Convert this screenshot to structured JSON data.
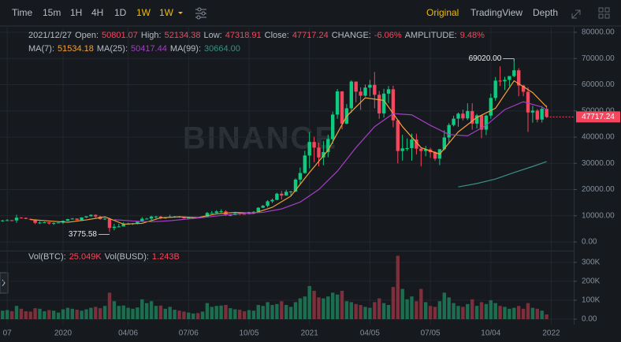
{
  "toolbar": {
    "intervals": [
      "Time",
      "15m",
      "1H",
      "4H",
      "1D",
      "1W"
    ],
    "dropdown": "1W",
    "views": [
      "Original",
      "TradingView",
      "Depth"
    ]
  },
  "chart_data": {
    "type": "candlestick",
    "watermark": "BINANCE",
    "header": {
      "date": "2021/12/27",
      "labels": [
        "Open:",
        "High:",
        "Low:",
        "Close:",
        "CHANGE:",
        "AMPLITUDE:"
      ],
      "change": "-6.06%",
      "amplitude": "9.48%"
    },
    "volume_header": {
      "labels": [
        "Vol(BTC):",
        "Vol(BUSD):"
      ],
      "btc": "25.049K",
      "busd": "1.243B"
    },
    "up_color": "#0ecb81",
    "down_color": "#f6465d",
    "volume_up_color": "#1d6e50",
    "volume_down_color": "#7d2f3b",
    "max_label": "69020.00",
    "candles": [
      [
        8050,
        8400,
        7700,
        8200
      ],
      [
        8200,
        8700,
        8050,
        8300
      ],
      [
        8300,
        8400,
        7900,
        8200
      ],
      [
        8200,
        10400,
        7300,
        9250
      ],
      [
        9250,
        9500,
        9050,
        9200
      ],
      [
        9200,
        9300,
        8700,
        8800
      ],
      [
        8800,
        8900,
        8350,
        8500
      ],
      [
        8500,
        8600,
        6800,
        7300
      ],
      [
        7300,
        7850,
        6850,
        7400
      ],
      [
        7400,
        7750,
        7250,
        7500
      ],
      [
        7500,
        7550,
        6650,
        7050
      ],
      [
        7050,
        7450,
        6450,
        7250
      ],
      [
        7250,
        7400,
        7100,
        7400
      ],
      [
        7400,
        8200,
        6850,
        8050
      ],
      [
        8050,
        8800,
        7950,
        8700
      ],
      [
        8700,
        9150,
        8550,
        8900
      ],
      [
        8900,
        9000,
        8250,
        8350
      ],
      [
        8350,
        9400,
        8300,
        9350
      ],
      [
        9350,
        9800,
        9150,
        9800
      ],
      [
        9800,
        10500,
        9700,
        10350
      ],
      [
        10350,
        10500,
        9250,
        9700
      ],
      [
        9700,
        10000,
        8500,
        8700
      ],
      [
        8700,
        9200,
        8400,
        8900
      ],
      [
        8900,
        9200,
        3775.58,
        5350
      ],
      [
        5350,
        6900,
        4450,
        5800
      ],
      [
        5800,
        6950,
        5700,
        5900
      ],
      [
        5900,
        7450,
        5900,
        6800
      ],
      [
        6800,
        7300,
        6800,
        6900
      ],
      [
        6900,
        7200,
        6500,
        7100
      ],
      [
        7100,
        7750,
        6750,
        7700
      ],
      [
        7700,
        9450,
        7550,
        8850
      ],
      [
        8850,
        9200,
        8600,
        8900
      ],
      [
        8900,
        10000,
        8100,
        9700
      ],
      [
        9700,
        9950,
        8800,
        9700
      ],
      [
        9700,
        9950,
        8650,
        9000
      ],
      [
        9000,
        9550,
        8850,
        9450
      ],
      [
        9450,
        10400,
        9400,
        9650
      ],
      [
        9650,
        9900,
        9250,
        9700
      ],
      [
        9700,
        9850,
        9250,
        9350
      ],
      [
        9350,
        9500,
        8900,
        9100
      ],
      [
        9100,
        9350,
        8950,
        9250
      ],
      [
        9250,
        9350,
        9050,
        9300
      ],
      [
        9300,
        9350,
        9050,
        9200
      ],
      [
        9200,
        9650,
        9100,
        9700
      ],
      [
        9700,
        11450,
        9700,
        11050
      ],
      [
        11050,
        11800,
        10900,
        11050
      ],
      [
        11050,
        12100,
        11000,
        11650
      ],
      [
        11650,
        12450,
        11150,
        11700
      ],
      [
        11650,
        12100,
        9900,
        10250
      ],
      [
        10250,
        10600,
        9850,
        10300
      ],
      [
        10300,
        11150,
        10200,
        10950
      ],
      [
        10950,
        11050,
        10150,
        10750
      ],
      [
        10750,
        10950,
        10500,
        10650
      ],
      [
        10650,
        11500,
        10550,
        11400
      ],
      [
        11400,
        11750,
        11200,
        11500
      ],
      [
        11500,
        13250,
        11400,
        13050
      ],
      [
        13050,
        14100,
        12900,
        13800
      ],
      [
        13800,
        15950,
        13200,
        15500
      ],
      [
        15500,
        16500,
        14850,
        16050
      ],
      [
        16050,
        18800,
        15900,
        18400
      ],
      [
        18400,
        19450,
        16200,
        17700
      ],
      [
        17700,
        19900,
        17650,
        19150
      ],
      [
        19150,
        19450,
        17600,
        19250
      ],
      [
        19250,
        24250,
        19000,
        23800
      ],
      [
        23800,
        28400,
        21900,
        26300
      ],
      [
        26300,
        34800,
        26050,
        33000
      ],
      [
        33000,
        41950,
        28100,
        38150
      ],
      [
        38150,
        40100,
        30400,
        36000
      ],
      [
        36000,
        37900,
        28850,
        32250
      ],
      [
        32250,
        38550,
        29250,
        34300
      ],
      [
        34300,
        40950,
        32300,
        39250
      ],
      [
        39250,
        49700,
        37350,
        48600
      ],
      [
        48600,
        58350,
        47000,
        57450
      ],
      [
        57450,
        57550,
        43000,
        45150
      ],
      [
        45150,
        52600,
        44950,
        51000
      ],
      [
        51000,
        61700,
        49250,
        61200
      ],
      [
        61200,
        61200,
        53300,
        57350
      ],
      [
        57350,
        59000,
        50400,
        55800
      ],
      [
        55800,
        60050,
        55450,
        58900
      ],
      [
        58900,
        61850,
        55500,
        59950
      ],
      [
        59950,
        64850,
        51000,
        56150
      ],
      [
        56150,
        57600,
        47000,
        49050
      ],
      [
        49050,
        58450,
        47450,
        56600
      ],
      [
        56600,
        59500,
        53000,
        58250
      ],
      [
        58250,
        59600,
        43800,
        46400
      ],
      [
        46400,
        46700,
        30000,
        34700
      ],
      [
        34700,
        40900,
        31000,
        35700
      ],
      [
        35700,
        39500,
        34800,
        35800
      ],
      [
        35800,
        41350,
        31000,
        39100
      ],
      [
        39100,
        41300,
        33350,
        35600
      ],
      [
        35600,
        35750,
        28800,
        34700
      ],
      [
        34700,
        36650,
        32700,
        35300
      ],
      [
        35300,
        35950,
        32100,
        34250
      ],
      [
        34250,
        34650,
        31000,
        31800
      ],
      [
        31800,
        35400,
        29300,
        35400
      ],
      [
        35400,
        42600,
        34900,
        39850
      ],
      [
        39850,
        45300,
        37500,
        44600
      ],
      [
        44600,
        48150,
        44100,
        47050
      ],
      [
        47050,
        49400,
        43950,
        48950
      ],
      [
        48950,
        50500,
        46350,
        47150
      ],
      [
        47150,
        52900,
        46500,
        49950
      ],
      [
        49950,
        52950,
        42850,
        45150
      ],
      [
        45150,
        48850,
        43350,
        48300
      ],
      [
        48300,
        48350,
        39600,
        42850
      ],
      [
        42850,
        48550,
        40750,
        48200
      ],
      [
        48200,
        56550,
        47000,
        54950
      ],
      [
        54950,
        62950,
        53900,
        61550
      ],
      [
        61550,
        67000,
        59500,
        61300
      ],
      [
        61300,
        63000,
        58000,
        61850
      ],
      [
        61850,
        63000,
        59400,
        63300
      ],
      [
        63300,
        69020,
        62800,
        65500
      ],
      [
        65500,
        66300,
        55600,
        59700
      ],
      [
        59700,
        59950,
        55650,
        57300
      ],
      [
        57300,
        59050,
        42000,
        49400
      ],
      [
        49400,
        51950,
        45500,
        50100
      ],
      [
        50100,
        50700,
        45650,
        46700
      ],
      [
        46700,
        51850,
        45550,
        50800
      ],
      [
        50801.07,
        52134.38,
        47318.91,
        47717.24
      ]
    ],
    "volumes": [
      45,
      48,
      42,
      70,
      55,
      42,
      40,
      58,
      55,
      42,
      48,
      45,
      35,
      52,
      60,
      55,
      50,
      45,
      52,
      60,
      65,
      58,
      70,
      140,
      95,
      70,
      72,
      60,
      55,
      62,
      105,
      85,
      95,
      70,
      72,
      55,
      65,
      50,
      45,
      40,
      35,
      30,
      32,
      40,
      85,
      65,
      70,
      72,
      75,
      58,
      52,
      50,
      42,
      48,
      45,
      75,
      70,
      90,
      75,
      80,
      95,
      75,
      65,
      90,
      110,
      120,
      175,
      150,
      115,
      110,
      120,
      140,
      130,
      150,
      95,
      90,
      80,
      75,
      65,
      60,
      90,
      110,
      85,
      75,
      170,
      335,
      160,
      105,
      120,
      95,
      160,
      90,
      70,
      65,
      95,
      140,
      115,
      85,
      70,
      65,
      80,
      105,
      70,
      90,
      80,
      100,
      85,
      70,
      65,
      55,
      60,
      70,
      55,
      85,
      60,
      55,
      45,
      25.049
    ],
    "series": [
      {
        "name": "MA(7):",
        "color": "#f0a03c",
        "legend_value": "51534.18",
        "x": [
          6,
          10,
          14,
          18,
          22,
          26,
          30,
          34,
          38,
          42,
          46,
          50,
          54,
          58,
          62,
          66,
          70,
          74,
          78,
          82,
          86,
          90,
          94,
          98,
          102,
          106,
          110,
          114,
          117
        ],
        "values": [
          8550,
          8000,
          7500,
          8400,
          9600,
          6800,
          7100,
          9200,
          9600,
          9300,
          10700,
          11300,
          10900,
          13200,
          17500,
          26500,
          35000,
          48000,
          55000,
          54000,
          44000,
          36000,
          33500,
          42000,
          47500,
          51000,
          61500,
          57000,
          51534.18
        ]
      },
      {
        "name": "MA(25):",
        "color": "#a23fc1",
        "legend_value": "50417.44",
        "x": [
          24,
          28,
          32,
          36,
          40,
          44,
          48,
          52,
          56,
          60,
          64,
          68,
          72,
          76,
          80,
          84,
          88,
          92,
          96,
          100,
          104,
          108,
          112,
          116,
          117
        ],
        "values": [
          8500,
          8000,
          7700,
          8100,
          8800,
          9500,
          10300,
          10900,
          11300,
          12600,
          15200,
          20000,
          27000,
          36000,
          44000,
          49000,
          48500,
          44500,
          41000,
          40500,
          44500,
          50500,
          53500,
          51500,
          50417.44
        ]
      },
      {
        "name": "MA(99):",
        "color": "#3a8f83",
        "legend_value": "30664.00",
        "x": [
          98,
          102,
          106,
          110,
          114,
          117
        ],
        "values": [
          21000,
          22300,
          24000,
          26500,
          28800,
          30664
        ]
      }
    ],
    "ylim": [
      -3300,
      81800
    ],
    "yticks": [
      {
        "value": 0,
        "label": "0.00"
      },
      {
        "value": 10000,
        "label": "10000.00"
      },
      {
        "value": 20000,
        "label": "20000.00"
      },
      {
        "value": 30000,
        "label": "30000.00"
      },
      {
        "value": 40000,
        "label": "40000.00"
      },
      {
        "value": 50000,
        "label": "50000.00"
      },
      {
        "value": 60000,
        "label": "60000.00"
      },
      {
        "value": 70000,
        "label": "70000.00"
      },
      {
        "value": 80000,
        "label": "80000.00"
      }
    ],
    "vol_ylim": [
      -29,
      354
    ],
    "vol_yticks": [
      {
        "value": 0,
        "label": "0.00"
      },
      {
        "value": 100,
        "label": "100K"
      },
      {
        "value": 200,
        "label": "200K"
      },
      {
        "value": 300,
        "label": "300K"
      }
    ],
    "xticks": [
      {
        "value": 1,
        "label": "07"
      },
      {
        "value": 13,
        "label": "2020"
      },
      {
        "value": 27,
        "label": "04/06"
      },
      {
        "value": 40,
        "label": "07/06"
      },
      {
        "value": 53,
        "label": "10/05"
      },
      {
        "value": 66,
        "label": "2021"
      },
      {
        "value": 79,
        "label": "04/05"
      },
      {
        "value": 92,
        "label": "07/05"
      },
      {
        "value": 105,
        "label": "10/04"
      },
      {
        "value": 118,
        "label": "2022"
      }
    ],
    "grid": true
  }
}
